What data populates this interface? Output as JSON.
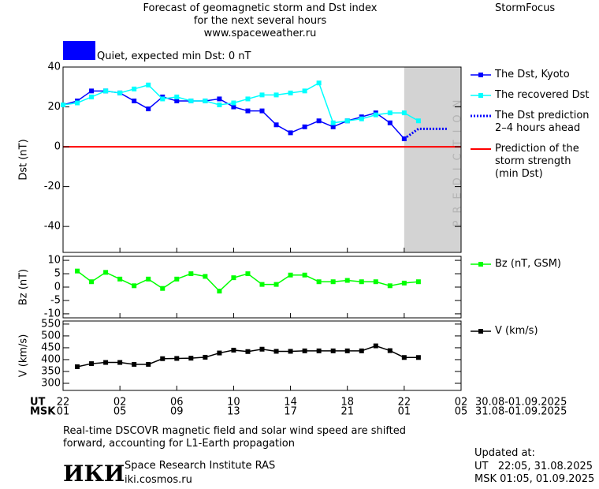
{
  "page": {
    "title": "Forecast of geomagnetic storm and Dst index\nfor the next several hours\nwww.spaceweather.ru",
    "brand": "StormFocus",
    "status": {
      "label": "Quiet, expected min Dst: 0 nT",
      "color": "#0000ff"
    },
    "note": "Real-time DSCOVR magnetic field and solar wind speed are shifted\nforward, accounting for L1-Earth propagation",
    "updated": [
      "Updated at:",
      "UT   22:05, 31.08.2025",
      "MSK 01:05, 01.09.2025"
    ],
    "logo": "ИКИ",
    "institute": [
      "Space Research Institute RAS",
      "iki.cosmos.ru"
    ]
  },
  "chart_data": [
    {
      "type": "line",
      "y_label": "Dst (nT)",
      "x": [
        0,
        1,
        2,
        3,
        4,
        5,
        6,
        7,
        8,
        9,
        10,
        11,
        12,
        13,
        14,
        15,
        16,
        17,
        18,
        19,
        20,
        21,
        22,
        23,
        24,
        25,
        26,
        27
      ],
      "xlim": [
        0,
        28
      ],
      "ylim": [
        -53,
        40
      ],
      "yticks": [
        -40,
        -20,
        0,
        20,
        40
      ],
      "prediction_region": {
        "label": "PREDICTION",
        "xlim": [
          24,
          28
        ],
        "color": "#d3d3d3"
      },
      "threshold": {
        "name": "Prediction of the\nstorm strength\n(min Dst)",
        "color": "#ff0000",
        "value": 0
      },
      "series": [
        {
          "name": "The Dst, Kyoto",
          "color": "#0000ff",
          "marker": true,
          "values": [
            21,
            23,
            28,
            28,
            27,
            23,
            19,
            25,
            23,
            23,
            23,
            24,
            20,
            18,
            18,
            11,
            7,
            10,
            13,
            10,
            13,
            15,
            17,
            12,
            4,
            null,
            null,
            null
          ]
        },
        {
          "name": "The recovered Dst",
          "color": "#00ffff",
          "marker": true,
          "values": [
            21,
            22,
            25,
            28,
            27,
            29,
            31,
            24,
            25,
            23,
            23,
            21,
            22,
            24,
            26,
            26,
            27,
            28,
            32,
            12,
            13,
            14,
            16,
            17,
            17,
            13,
            null,
            null
          ]
        },
        {
          "name": "The Dst prediction\n2–4 hours ahead",
          "color": "#0000ff",
          "marker": false,
          "dashed": true,
          "values": [
            null,
            null,
            null,
            null,
            null,
            null,
            null,
            null,
            null,
            null,
            null,
            null,
            null,
            null,
            null,
            null,
            null,
            null,
            null,
            null,
            null,
            null,
            null,
            null,
            4,
            9,
            9,
            9
          ]
        }
      ]
    },
    {
      "type": "line",
      "y_label": "Bz (nT)",
      "x": [
        0,
        1,
        2,
        3,
        4,
        5,
        6,
        7,
        8,
        9,
        10,
        11,
        12,
        13,
        14,
        15,
        16,
        17,
        18,
        19,
        20,
        21,
        22,
        23,
        24,
        25,
        26,
        27
      ],
      "xlim": [
        0,
        28
      ],
      "ylim": [
        -11.5,
        11.5
      ],
      "yticks": [
        -10,
        -5,
        0,
        5,
        10
      ],
      "series": [
        {
          "name": "Bz (nT, GSM)",
          "color": "#00ff00",
          "marker": true,
          "values": [
            null,
            6,
            2,
            5.5,
            3,
            0.5,
            3,
            -0.5,
            3,
            5,
            4,
            -1.5,
            3.5,
            5,
            1,
            1,
            4.5,
            4.5,
            2,
            2,
            2.5,
            2,
            2,
            0.5,
            1.5,
            2,
            null,
            null
          ]
        }
      ]
    },
    {
      "type": "line",
      "y_label": "V (km/s)",
      "x": [
        0,
        1,
        2,
        3,
        4,
        5,
        6,
        7,
        8,
        9,
        10,
        11,
        12,
        13,
        14,
        15,
        16,
        17,
        18,
        19,
        20,
        21,
        22,
        23,
        24,
        25,
        26,
        27
      ],
      "xlim": [
        0,
        28
      ],
      "ylim": [
        270,
        563
      ],
      "yticks": [
        300,
        350,
        400,
        450,
        500,
        550
      ],
      "xticks": [
        {
          "value": 0,
          "label": "22"
        },
        {
          "value": 4,
          "label": "02"
        },
        {
          "value": 8,
          "label": "06"
        },
        {
          "value": 12,
          "label": "10"
        },
        {
          "value": 16,
          "label": "14"
        },
        {
          "value": 20,
          "label": "18"
        },
        {
          "value": 24,
          "label": "22"
        },
        {
          "value": 28,
          "label": "02"
        }
      ],
      "xticks_msk": [
        {
          "value": 0,
          "label": "01"
        },
        {
          "value": 4,
          "label": "05"
        },
        {
          "value": 8,
          "label": "09"
        },
        {
          "value": 12,
          "label": "13"
        },
        {
          "value": 16,
          "label": "17"
        },
        {
          "value": 20,
          "label": "21"
        },
        {
          "value": 24,
          "label": "01"
        },
        {
          "value": 28,
          "label": "05"
        }
      ],
      "x_axis_names": [
        "UT",
        "MSK"
      ],
      "x_ranges": [
        "30.08-01.09.2025",
        "31.08-01.09.2025"
      ],
      "series": [
        {
          "name": "V (km/s)",
          "color": "#000000",
          "marker": true,
          "values": [
            null,
            370,
            383,
            388,
            388,
            380,
            380,
            404,
            405,
            406,
            410,
            428,
            440,
            434,
            444,
            435,
            435,
            437,
            437,
            437,
            437,
            437,
            458,
            438,
            409,
            409,
            null,
            null
          ]
        }
      ]
    }
  ]
}
